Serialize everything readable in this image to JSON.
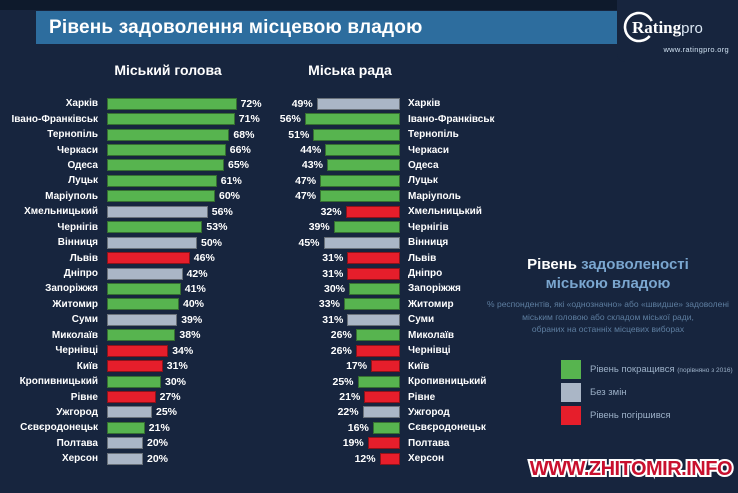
{
  "header": {
    "title": "Рівень задоволення місцевою владою",
    "logo": {
      "brand_bold": "Rating",
      "brand_light": "pro",
      "url": "www.ratingpro.org"
    }
  },
  "charts": {
    "left_title": "Міський голова",
    "right_title": "Міська рада"
  },
  "panel": {
    "title_white": "Рівень",
    "title_blue": "задоволеності",
    "title_line2": "міською владою",
    "subtitle_lines": [
      "% респондентів, які «однозначно» або «швидше» задоволені",
      "міським головою або складом міської ради,",
      "обраних на останніх місцевих виборах"
    ]
  },
  "legend": {
    "items": [
      {
        "label": "Рівень покращився",
        "note": "(порівняно з 2016)",
        "status": "improved"
      },
      {
        "label": "Без змін",
        "note": "",
        "status": "same"
      },
      {
        "label": "Рівень погіршився",
        "note": "",
        "status": "worse"
      }
    ]
  },
  "watermark": "WWW.ZHITOMIR.INFO",
  "chart_data": {
    "type": "bar",
    "orientation": "horizontal",
    "unit": "%",
    "title": "Рівень задоволення місцевою владою",
    "categories": [
      "Харків",
      "Івано-Франківськ",
      "Тернопіль",
      "Черкаси",
      "Одеса",
      "Луцьк",
      "Маріуполь",
      "Хмельницький",
      "Чернігів",
      "Вінниця",
      "Львів",
      "Дніпро",
      "Запоріжжя",
      "Житомир",
      "Суми",
      "Миколаїв",
      "Чернівці",
      "Київ",
      "Кропивницький",
      "Рівне",
      "Ужгород",
      "Сєвєродонецьк",
      "Полтава",
      "Херсон"
    ],
    "series": [
      {
        "name": "Міський голова",
        "values": [
          72,
          71,
          68,
          66,
          65,
          61,
          60,
          56,
          53,
          50,
          46,
          42,
          41,
          40,
          39,
          38,
          34,
          31,
          30,
          27,
          25,
          21,
          20,
          20
        ],
        "status": [
          "improved",
          "improved",
          "improved",
          "improved",
          "improved",
          "improved",
          "improved",
          "same",
          "improved",
          "same",
          "worse",
          "same",
          "improved",
          "improved",
          "same",
          "improved",
          "worse",
          "worse",
          "improved",
          "worse",
          "same",
          "improved",
          "same",
          "same"
        ]
      },
      {
        "name": "Міська рада",
        "values": [
          49,
          56,
          51,
          44,
          43,
          47,
          47,
          32,
          39,
          45,
          31,
          31,
          30,
          33,
          31,
          26,
          26,
          17,
          25,
          21,
          22,
          16,
          19,
          12
        ],
        "status": [
          "same",
          "improved",
          "improved",
          "improved",
          "improved",
          "improved",
          "improved",
          "worse",
          "improved",
          "same",
          "worse",
          "worse",
          "improved",
          "improved",
          "same",
          "improved",
          "worse",
          "worse",
          "improved",
          "worse",
          "same",
          "improved",
          "worse",
          "worse"
        ]
      }
    ],
    "status_colors": {
      "improved": "#57b44f",
      "same": "#aab6c6",
      "worse": "#e61e2b"
    },
    "xlim": [
      0,
      100
    ],
    "grid": false,
    "legend_position": "right-panel"
  }
}
